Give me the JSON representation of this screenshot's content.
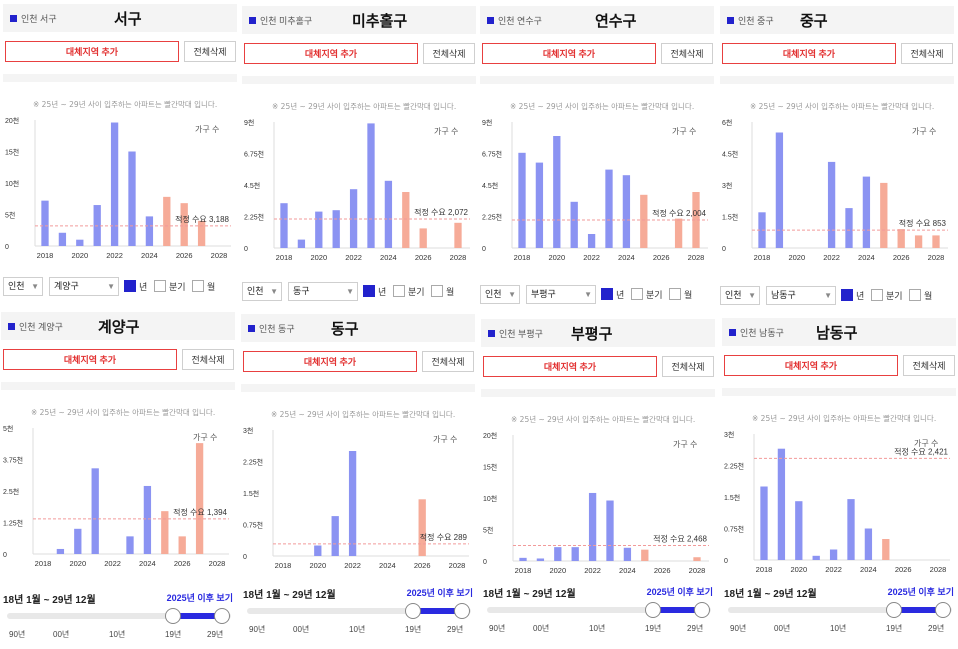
{
  "ui": {
    "add_button": "대체지역 추가",
    "delete_button": "전체삭제",
    "note": "※ 25년 ~ 29년 사이 입주하는 아파트는 빨간막대 입니다.",
    "households_label": "가구 수",
    "city_select": "인천",
    "period_year": "년",
    "period_quarter": "분기",
    "period_month": "월",
    "range_title": "18년 1월 ~ 29년 12월",
    "range_link": "2025년 이후 보기",
    "range_ticks": [
      "90년",
      "00년",
      "10년",
      "19년",
      "29년"
    ]
  },
  "colors": {
    "past_bar": "#8b93f2",
    "future_bar": "#f6ab98",
    "demand_line": "#f29a9a",
    "brand_blue": "#2222cc",
    "add_button_red": "#e84040"
  },
  "panels": [
    {
      "region_label": "인천 서구",
      "name": "서구",
      "district_select": "계양구",
      "demand_label": "적정 수요 3,188",
      "chart_data": {
        "type": "bar",
        "x": [
          2018,
          2019,
          2020,
          2021,
          2022,
          2023,
          2024,
          2025,
          2026,
          2027
        ],
        "values": [
          7200,
          2100,
          1000,
          6500,
          19600,
          15000,
          4700,
          7800,
          6800,
          4000
        ],
        "future_from": 2025,
        "demand": 3188,
        "ylim": [
          0,
          20000
        ],
        "yticks": [
          "0",
          "5천",
          "10천",
          "15천",
          "20천"
        ],
        "xticks": [
          "2018",
          "2020",
          "2022",
          "2024",
          "2026",
          "2028"
        ]
      }
    },
    {
      "region_label": "인천 미추홀구",
      "name": "미추홀구",
      "district_select": "동구",
      "demand_label": "적정 수요 2,072",
      "chart_data": {
        "type": "bar",
        "x": [
          2018,
          2019,
          2020,
          2021,
          2022,
          2023,
          2024,
          2025,
          2026,
          2027,
          2028
        ],
        "values": [
          3200,
          600,
          2600,
          2700,
          4200,
          8900,
          4800,
          4000,
          1400,
          0,
          1800
        ],
        "future_from": 2025,
        "demand": 2072,
        "ylim": [
          0,
          9000
        ],
        "yticks": [
          "0",
          "2.25천",
          "4.5천",
          "6.75천",
          "9천"
        ],
        "xticks": [
          "2018",
          "2020",
          "2022",
          "2024",
          "2026",
          "2028"
        ]
      }
    },
    {
      "region_label": "인천 연수구",
      "name": "연수구",
      "district_select": "부평구",
      "demand_label": "적정 수요 2,004",
      "chart_data": {
        "type": "bar",
        "x": [
          2018,
          2019,
          2020,
          2021,
          2022,
          2023,
          2024,
          2025,
          2026,
          2027,
          2028
        ],
        "values": [
          6800,
          6100,
          8000,
          3300,
          1000,
          5600,
          5200,
          3800,
          0,
          2100,
          4000
        ],
        "future_from": 2025,
        "demand": 2004,
        "ylim": [
          0,
          9000
        ],
        "yticks": [
          "0",
          "2.25천",
          "4.5천",
          "6.75천",
          "9천"
        ],
        "xticks": [
          "2018",
          "2020",
          "2022",
          "2024",
          "2026",
          "2028"
        ]
      }
    },
    {
      "region_label": "인천 중구",
      "name": "중구",
      "district_select": "남동구",
      "demand_label": "적정 수요 853",
      "chart_data": {
        "type": "bar",
        "x": [
          2018,
          2019,
          2020,
          2021,
          2022,
          2023,
          2024,
          2025,
          2026,
          2027,
          2028
        ],
        "values": [
          1700,
          5500,
          0,
          0,
          4100,
          1900,
          3400,
          3100,
          900,
          600,
          600
        ],
        "future_from": 2025,
        "demand": 853,
        "ylim": [
          0,
          6000
        ],
        "yticks": [
          "0",
          "1.5천",
          "3천",
          "4.5천",
          "6천"
        ],
        "xticks": [
          "2018",
          "2020",
          "2022",
          "2024",
          "2026",
          "2028"
        ]
      }
    },
    {
      "region_label": "인천 계양구",
      "name": "계양구",
      "chart_data": {
        "type": "bar",
        "x": [
          2018,
          2019,
          2020,
          2021,
          2022,
          2023,
          2024,
          2025,
          2026,
          2027
        ],
        "values": [
          0,
          200,
          1000,
          3400,
          0,
          700,
          2700,
          1700,
          700,
          4400
        ],
        "future_from": 2025,
        "demand": 1394,
        "demand_label": "적정 수요 1,394",
        "ylim": [
          0,
          5000
        ],
        "yticks": [
          "0",
          "1.25천",
          "2.5천",
          "3.75천",
          "5천"
        ],
        "xticks": [
          "2018",
          "2020",
          "2022",
          "2024",
          "2026",
          "2028"
        ]
      }
    },
    {
      "region_label": "인천 동구",
      "name": "동구",
      "chart_data": {
        "type": "bar",
        "x": [
          2018,
          2019,
          2020,
          2021,
          2022,
          2023,
          2024,
          2025,
          2026,
          2027
        ],
        "values": [
          0,
          0,
          250,
          950,
          2500,
          0,
          0,
          0,
          1350,
          0
        ],
        "future_from": 2025,
        "demand": 289,
        "demand_label": "적정 수요 289",
        "ylim": [
          0,
          3000
        ],
        "yticks": [
          "0",
          "0.75천",
          "1.5천",
          "2.25천",
          "3천"
        ],
        "xticks": [
          "2018",
          "2020",
          "2022",
          "2024",
          "2026",
          "2028"
        ]
      }
    },
    {
      "region_label": "인천 부평구",
      "name": "부평구",
      "chart_data": {
        "type": "bar",
        "x": [
          2018,
          2019,
          2020,
          2021,
          2022,
          2023,
          2024,
          2025,
          2026,
          2027,
          2028
        ],
        "values": [
          500,
          400,
          2200,
          2200,
          10800,
          9600,
          2100,
          1800,
          0,
          0,
          600
        ],
        "future_from": 2025,
        "demand": 2468,
        "demand_label": "적정 수요 2,468",
        "ylim": [
          0,
          20000
        ],
        "yticks": [
          "0",
          "5천",
          "10천",
          "15천",
          "20천"
        ],
        "xticks": [
          "2018",
          "2020",
          "2022",
          "2024",
          "2026",
          "2028"
        ]
      }
    },
    {
      "region_label": "인천 남동구",
      "name": "남동구",
      "chart_data": {
        "type": "bar",
        "x": [
          2018,
          2019,
          2020,
          2021,
          2022,
          2023,
          2024,
          2025,
          2026,
          2027
        ],
        "values": [
          1750,
          2650,
          1400,
          100,
          250,
          1450,
          750,
          500,
          0,
          0
        ],
        "future_from": 2025,
        "demand": 2421,
        "demand_label": "적정 수요 2,421",
        "ylim": [
          0,
          3000
        ],
        "yticks": [
          "0",
          "0.75천",
          "1.5천",
          "2.25천",
          "3천"
        ],
        "xticks": [
          "2018",
          "2020",
          "2022",
          "2024",
          "2026",
          "2028"
        ]
      }
    }
  ]
}
